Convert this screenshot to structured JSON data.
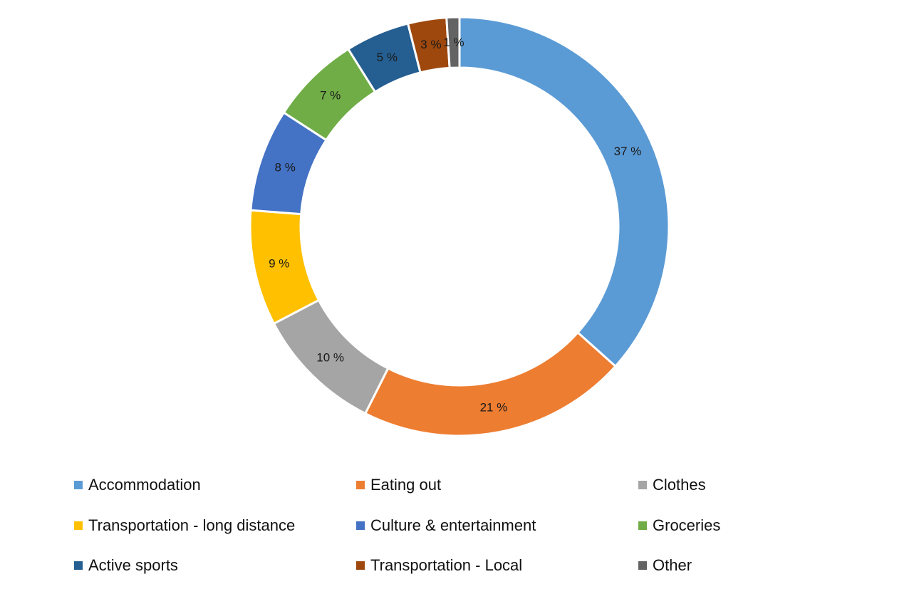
{
  "chart_data": {
    "type": "donut",
    "title": "",
    "legend_position": "bottom",
    "slices": [
      {
        "name": "Accommodation",
        "value": 37,
        "label": "37 %",
        "color": "#5B9BD5"
      },
      {
        "name": "Eating out",
        "value": 21,
        "label": "21 %",
        "color": "#ED7D31"
      },
      {
        "name": "Clothes",
        "value": 10,
        "label": "10 %",
        "color": "#A5A5A5"
      },
      {
        "name": "Transportation - long distance",
        "value": 9,
        "label": "9 %",
        "color": "#FFC000"
      },
      {
        "name": "Culture & entertainment",
        "value": 8,
        "label": "8 %",
        "color": "#4472C4"
      },
      {
        "name": "Groceries",
        "value": 7,
        "label": "7 %",
        "color": "#70AD47"
      },
      {
        "name": "Active sports",
        "value": 5,
        "label": "5 %",
        "color": "#255E91"
      },
      {
        "name": "Transportation - Local",
        "value": 3,
        "label": "3 %",
        "color": "#9E480E"
      },
      {
        "name": "Other",
        "value": 1,
        "label": "1 %",
        "color": "#636363"
      }
    ]
  }
}
